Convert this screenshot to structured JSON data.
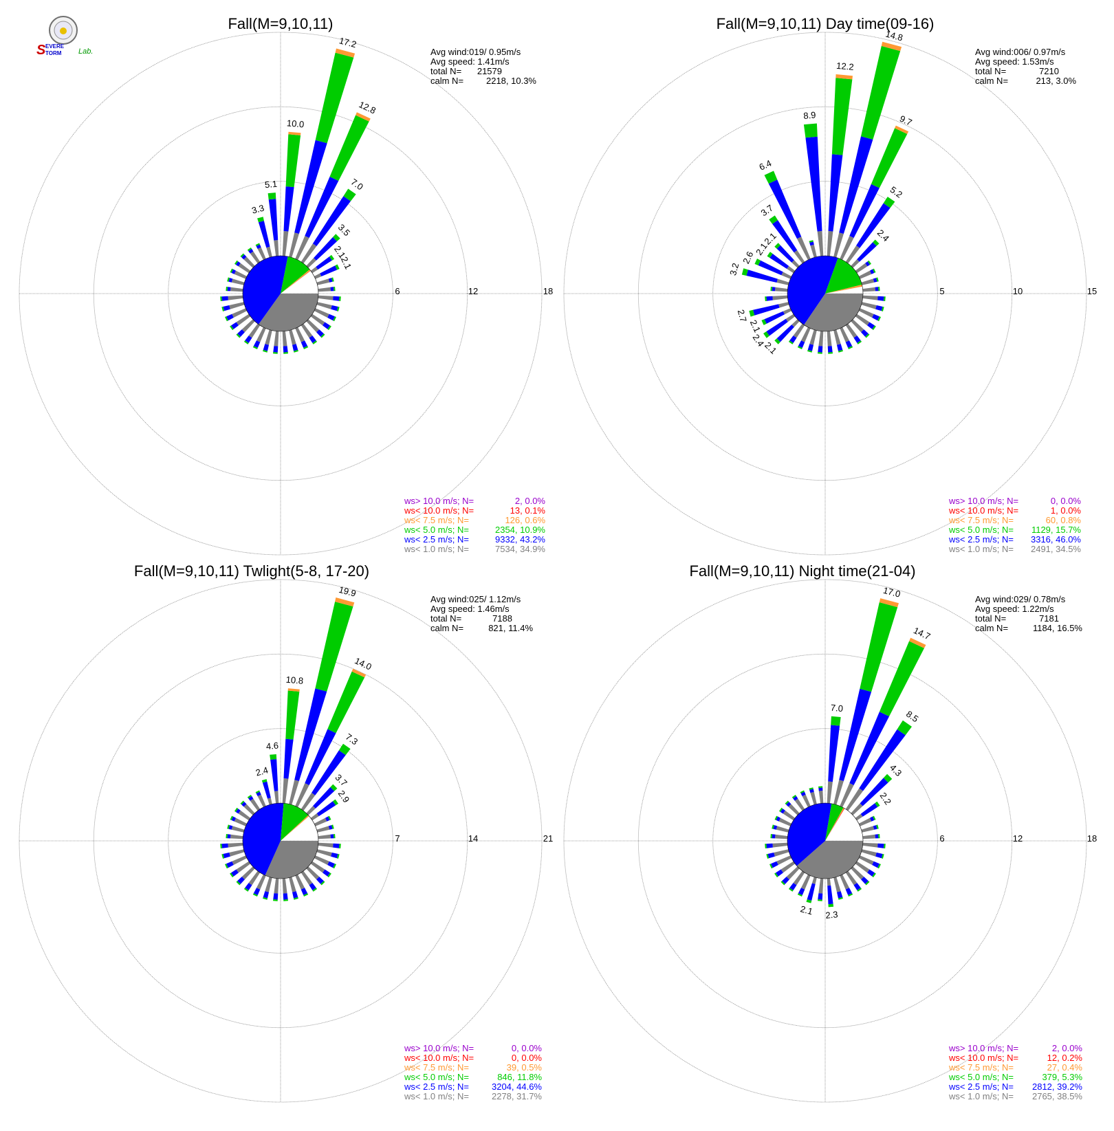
{
  "logo": {
    "text_s": "S",
    "text_evere": "EVERE",
    "text_torm": "TORM",
    "text_lab": "Lab."
  },
  "colors": {
    "c1": "#808080",
    "c25": "#0000ff",
    "c5": "#00cc00",
    "c75": "#ff9933",
    "c10": "#ff0000",
    "cgt10": "#9900cc",
    "grid": "#808080",
    "calm": "#ffffff"
  },
  "chart_data": [
    {
      "type": "polar-bar",
      "title": "Fall(M=9,10,11)",
      "rmax": 18,
      "ring_labels": [
        "6",
        "12",
        "18"
      ],
      "ring_values": [
        6,
        12,
        18
      ],
      "labeled_bars": [
        {
          "dir": 345,
          "value": 3.3,
          "label": "3.3"
        },
        {
          "dir": 355,
          "value": 5.1,
          "label": "5.1"
        },
        {
          "dir": 5,
          "value": 10.0,
          "label": "10.0"
        },
        {
          "dir": 15,
          "value": 17.2,
          "label": "17.2"
        },
        {
          "dir": 25,
          "value": 12.8,
          "label": "12.8"
        },
        {
          "dir": 35,
          "value": 7.0,
          "label": "7.0"
        },
        {
          "dir": 45,
          "value": 3.5,
          "label": "3.5"
        },
        {
          "dir": 55,
          "value": 2.1,
          "label": "2.1"
        },
        {
          "dir": 65,
          "value": 2.1,
          "label": "2.1"
        }
      ],
      "summary": {
        "avg_wind": "Avg wind:019/ 0.95m/s",
        "avg_speed": "Avg speed: 1.41m/s",
        "total_label": "total N=",
        "total_value": "21579",
        "calm_label": "calm N=",
        "calm_value": "2218,  10.3%"
      },
      "legend": [
        {
          "label": "ws> 10.0 m/s; N=",
          "value": "2,  0.0%",
          "color": "#9900cc"
        },
        {
          "label": "ws< 10.0 m/s; N=",
          "value": "13,  0.1%",
          "color": "#ff0000"
        },
        {
          "label": "ws<  7.5 m/s; N=",
          "value": "126,  0.6%",
          "color": "#ff9933"
        },
        {
          "label": "ws<  5.0 m/s; N=",
          "value": "2354, 10.9%",
          "color": "#00cc00"
        },
        {
          "label": "ws<  2.5 m/s; N=",
          "value": "9332, 43.2%",
          "color": "#0000ff"
        },
        {
          "label": "ws<  1.0 m/s; N=",
          "value": "7534, 34.9%",
          "color": "#808080"
        }
      ],
      "pie": [
        {
          "pct": 34.9,
          "color": "#808080"
        },
        {
          "pct": 43.2,
          "color": "#0000ff"
        },
        {
          "pct": 10.9,
          "color": "#00cc00"
        },
        {
          "pct": 0.6,
          "color": "#ff9933"
        },
        {
          "pct": 0.1,
          "color": "#ff0000"
        }
      ]
    },
    {
      "type": "polar-bar",
      "title": "Fall(M=9,10,11) Day time(09-16)",
      "rmax": 15,
      "ring_labels": [
        "5",
        "10",
        "15"
      ],
      "ring_values": [
        5,
        10,
        15
      ],
      "labeled_bars": [
        {
          "dir": 225,
          "value": 2.1,
          "label": "2.1"
        },
        {
          "dir": 235,
          "value": 2.4,
          "label": "2.4"
        },
        {
          "dir": 245,
          "value": 2.1,
          "label": "2.1"
        },
        {
          "dir": 255,
          "value": 2.7,
          "label": "2.7"
        },
        {
          "dir": 285,
          "value": 3.2,
          "label": "3.2"
        },
        {
          "dir": 295,
          "value": 2.6,
          "label": "2.6"
        },
        {
          "dir": 305,
          "value": 2.1,
          "label": "2.1"
        },
        {
          "dir": 315,
          "value": 2.1,
          "label": "2.1"
        },
        {
          "dir": 325,
          "value": 3.7,
          "label": "3.7"
        },
        {
          "dir": 335,
          "value": 6.4,
          "label": "6.4"
        },
        {
          "dir": 355,
          "value": 8.9,
          "label": "8.9"
        },
        {
          "dir": 5,
          "value": 12.2,
          "label": "12.2"
        },
        {
          "dir": 15,
          "value": 14.8,
          "label": "14.8"
        },
        {
          "dir": 25,
          "value": 9.7,
          "label": "9.7"
        },
        {
          "dir": 35,
          "value": 5.2,
          "label": "5.2"
        },
        {
          "dir": 45,
          "value": 2.4,
          "label": "2.4"
        }
      ],
      "summary": {
        "avg_wind": "Avg wind:006/ 0.97m/s",
        "avg_speed": "Avg speed: 1.53m/s",
        "total_label": "total N=",
        "total_value": "7210",
        "calm_label": "calm N=",
        "calm_value": "213,   3.0%"
      },
      "legend": [
        {
          "label": "ws> 10.0 m/s; N=",
          "value": "0,  0.0%",
          "color": "#9900cc"
        },
        {
          "label": "ws< 10.0 m/s; N=",
          "value": "1,  0.0%",
          "color": "#ff0000"
        },
        {
          "label": "ws<  7.5 m/s; N=",
          "value": "60,  0.8%",
          "color": "#ff9933"
        },
        {
          "label": "ws<  5.0 m/s; N=",
          "value": "1129, 15.7%",
          "color": "#00cc00"
        },
        {
          "label": "ws<  2.5 m/s; N=",
          "value": "3316, 46.0%",
          "color": "#0000ff"
        },
        {
          "label": "ws<  1.0 m/s; N=",
          "value": "2491, 34.5%",
          "color": "#808080"
        }
      ],
      "pie": [
        {
          "pct": 34.5,
          "color": "#808080"
        },
        {
          "pct": 46.0,
          "color": "#0000ff"
        },
        {
          "pct": 15.7,
          "color": "#00cc00"
        },
        {
          "pct": 0.8,
          "color": "#ff9933"
        },
        {
          "pct": 0.0,
          "color": "#ff0000"
        }
      ]
    },
    {
      "type": "polar-bar",
      "title": "Fall(M=9,10,11) Twlight(5-8, 17-20)",
      "rmax": 21,
      "ring_labels": [
        "7",
        "14",
        "21"
      ],
      "ring_values": [
        7,
        14,
        21
      ],
      "labeled_bars": [
        {
          "dir": 345,
          "value": 2.4,
          "label": "2.4"
        },
        {
          "dir": 355,
          "value": 4.6,
          "label": "4.6"
        },
        {
          "dir": 5,
          "value": 10.8,
          "label": "10.8"
        },
        {
          "dir": 15,
          "value": 19.9,
          "label": "19.9"
        },
        {
          "dir": 25,
          "value": 14.0,
          "label": "14.0"
        },
        {
          "dir": 35,
          "value": 7.3,
          "label": "7.3"
        },
        {
          "dir": 45,
          "value": 3.7,
          "label": "3.7"
        },
        {
          "dir": 55,
          "value": 2.9,
          "label": "2.9"
        }
      ],
      "summary": {
        "avg_wind": "Avg wind:025/ 1.12m/s",
        "avg_speed": "Avg speed: 1.46m/s",
        "total_label": "total N=",
        "total_value": "7188",
        "calm_label": "calm N=",
        "calm_value": "821,  11.4%"
      },
      "legend": [
        {
          "label": "ws> 10.0 m/s; N=",
          "value": "0,  0.0%",
          "color": "#9900cc"
        },
        {
          "label": "ws< 10.0 m/s; N=",
          "value": "0,  0.0%",
          "color": "#ff0000"
        },
        {
          "label": "ws<  7.5 m/s; N=",
          "value": "39,  0.5%",
          "color": "#ff9933"
        },
        {
          "label": "ws<  5.0 m/s; N=",
          "value": "846, 11.8%",
          "color": "#00cc00"
        },
        {
          "label": "ws<  2.5 m/s; N=",
          "value": "3204, 44.6%",
          "color": "#0000ff"
        },
        {
          "label": "ws<  1.0 m/s; N=",
          "value": "2278, 31.7%",
          "color": "#808080"
        }
      ],
      "pie": [
        {
          "pct": 31.7,
          "color": "#808080"
        },
        {
          "pct": 44.6,
          "color": "#0000ff"
        },
        {
          "pct": 11.8,
          "color": "#00cc00"
        },
        {
          "pct": 0.5,
          "color": "#ff9933"
        },
        {
          "pct": 0.0,
          "color": "#ff0000"
        }
      ]
    },
    {
      "type": "polar-bar",
      "title": "Fall(M=9,10,11) Night time(21-04)",
      "rmax": 18,
      "ring_labels": [
        "6",
        "12",
        "18"
      ],
      "ring_values": [
        6,
        12,
        18
      ],
      "labeled_bars": [
        {
          "dir": 195,
          "value": 2.1,
          "label": "2.1"
        },
        {
          "dir": 175,
          "value": 2.3,
          "label": "2.3"
        },
        {
          "dir": 5,
          "value": 7.0,
          "label": "7.0"
        },
        {
          "dir": 15,
          "value": 17.0,
          "label": "17.0"
        },
        {
          "dir": 25,
          "value": 14.7,
          "label": "14.7"
        },
        {
          "dir": 35,
          "value": 8.5,
          "label": "8.5"
        },
        {
          "dir": 45,
          "value": 4.3,
          "label": "4.3"
        },
        {
          "dir": 55,
          "value": 2.2,
          "label": "2.2"
        }
      ],
      "summary": {
        "avg_wind": "Avg wind:029/ 0.78m/s",
        "avg_speed": "Avg speed: 1.22m/s",
        "total_label": "total N=",
        "total_value": "7181",
        "calm_label": "calm N=",
        "calm_value": "1184,  16.5%"
      },
      "legend": [
        {
          "label": "ws> 10.0 m/s; N=",
          "value": "2,  0.0%",
          "color": "#9900cc"
        },
        {
          "label": "ws< 10.0 m/s; N=",
          "value": "12,  0.2%",
          "color": "#ff0000"
        },
        {
          "label": "ws<  7.5 m/s; N=",
          "value": "27,  0.4%",
          "color": "#ff9933"
        },
        {
          "label": "ws<  5.0 m/s; N=",
          "value": "379,  5.3%",
          "color": "#00cc00"
        },
        {
          "label": "ws<  2.5 m/s; N=",
          "value": "2812, 39.2%",
          "color": "#0000ff"
        },
        {
          "label": "ws<  1.0 m/s; N=",
          "value": "2765, 38.5%",
          "color": "#808080"
        }
      ],
      "pie": [
        {
          "pct": 38.5,
          "color": "#808080"
        },
        {
          "pct": 39.2,
          "color": "#0000ff"
        },
        {
          "pct": 5.3,
          "color": "#00cc00"
        },
        {
          "pct": 0.4,
          "color": "#ff9933"
        },
        {
          "pct": 0.2,
          "color": "#ff0000"
        }
      ]
    }
  ]
}
